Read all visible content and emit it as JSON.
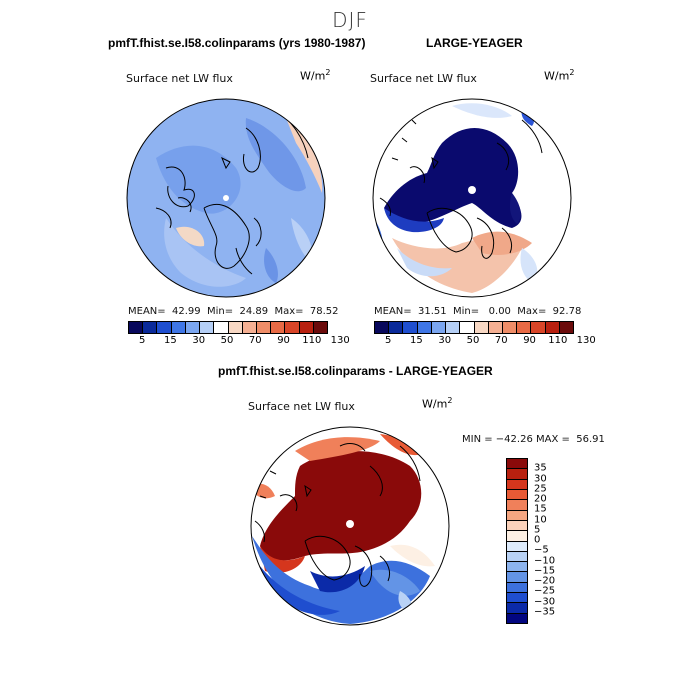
{
  "figure": {
    "season": "DJF",
    "panel_left_title": "pmfT.fhist.se.I58.colinparams (yrs 1980-1987)",
    "panel_right_title": "LARGE-YEAGER",
    "panel_diff_title": "pmfT.fhist.se.I58.colinparams - LARGE-YEAGER"
  },
  "panels": {
    "left": {
      "variable": "Surface net LW flux",
      "units": "W/m",
      "units_sup": "2",
      "stats": "MEAN=  42.99  Min=  24.89  Max=  78.52"
    },
    "right": {
      "variable": "Surface net LW flux",
      "units": "W/m",
      "units_sup": "2",
      "stats": "MEAN=  31.51  Min=   0.00  Max=  92.78"
    },
    "diff": {
      "variable": "Surface net LW flux",
      "units": "W/m",
      "units_sup": "2",
      "stats": "MIN = −42.26 MAX =  56.91"
    }
  },
  "colorbars": {
    "abs_ticks": [
      "5",
      "15",
      "30",
      "50",
      "70",
      "90",
      "110",
      "130"
    ],
    "abs_colors": [
      "#08085c",
      "#0a2a9a",
      "#1f4fd0",
      "#3f76e6",
      "#7ba6f0",
      "#b5cff6",
      "#ffffff",
      "#f8d8c4",
      "#f5b093",
      "#ef8d68",
      "#e86a45",
      "#d84528",
      "#b8200f",
      "#6b0b0b"
    ],
    "diff_ticks": [
      "35",
      "30",
      "25",
      "20",
      "15",
      "10",
      "5",
      "0",
      "−5",
      "−10",
      "−15",
      "−20",
      "−25",
      "−30",
      "−35"
    ],
    "diff_colors": [
      "#8a0a0a",
      "#b8200f",
      "#d5361d",
      "#e85a35",
      "#f0805a",
      "#f5a681",
      "#fbd2bb",
      "#fdf0e4",
      "#deebfb",
      "#b9d2f5",
      "#8db4ee",
      "#6394e6",
      "#3d71dd",
      "#1f4ecf",
      "#0b2aa8",
      "#020680"
    ]
  }
}
